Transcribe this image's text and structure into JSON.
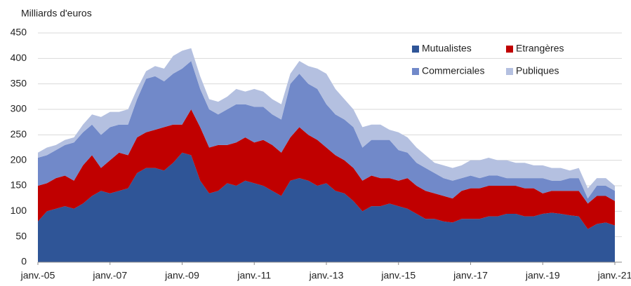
{
  "chart_data": {
    "type": "stacked-area",
    "y_label": "Milliards d'euros",
    "categories": [
      "janv.-05",
      null,
      null,
      null,
      null,
      null,
      null,
      null,
      "janv.-07",
      null,
      null,
      null,
      null,
      null,
      null,
      null,
      "janv.-09",
      null,
      null,
      null,
      null,
      null,
      null,
      null,
      "janv.-11",
      null,
      null,
      null,
      null,
      null,
      null,
      null,
      "janv.-13",
      null,
      null,
      null,
      null,
      null,
      null,
      null,
      "janv.-15",
      null,
      null,
      null,
      null,
      null,
      null,
      null,
      "janv.-17",
      null,
      null,
      null,
      null,
      null,
      null,
      null,
      "janv.-19",
      null,
      null,
      null,
      null,
      null,
      null,
      null,
      "janv.-21"
    ],
    "series": [
      {
        "name": "Mutualistes",
        "color": "#2f5597",
        "values": [
          80,
          100,
          105,
          110,
          105,
          115,
          130,
          140,
          135,
          140,
          145,
          175,
          185,
          185,
          180,
          195,
          215,
          210,
          160,
          135,
          140,
          155,
          150,
          160,
          155,
          150,
          140,
          130,
          160,
          165,
          160,
          150,
          155,
          140,
          135,
          120,
          100,
          110,
          110,
          115,
          110,
          105,
          95,
          85,
          85,
          80,
          78,
          85,
          85,
          85,
          90,
          90,
          95,
          95,
          90,
          90,
          95,
          97,
          95,
          92,
          90,
          65,
          75,
          78,
          72
        ]
      },
      {
        "name": "Etrangères",
        "color": "#c00000",
        "values": [
          70,
          55,
          60,
          60,
          55,
          75,
          80,
          45,
          65,
          75,
          65,
          70,
          70,
          75,
          85,
          75,
          55,
          90,
          105,
          90,
          90,
          75,
          85,
          85,
          80,
          90,
          90,
          85,
          85,
          100,
          90,
          90,
          70,
          70,
          65,
          65,
          60,
          60,
          55,
          50,
          50,
          60,
          55,
          55,
          50,
          50,
          47,
          55,
          60,
          60,
          60,
          60,
          55,
          55,
          55,
          55,
          40,
          43,
          45,
          48,
          50,
          50,
          55,
          52,
          48
        ]
      },
      {
        "name": "Commerciales",
        "color": "#7189c9",
        "values": [
          55,
          55,
          55,
          60,
          75,
          65,
          60,
          65,
          65,
          55,
          60,
          75,
          105,
          105,
          90,
          100,
          110,
          95,
          75,
          75,
          60,
          70,
          75,
          65,
          70,
          65,
          60,
          65,
          105,
          105,
          100,
          100,
          85,
          80,
          80,
          80,
          65,
          70,
          75,
          75,
          60,
          50,
          45,
          45,
          40,
          35,
          35,
          25,
          25,
          20,
          20,
          20,
          15,
          15,
          20,
          20,
          30,
          20,
          20,
          25,
          25,
          10,
          20,
          20,
          20
        ]
      },
      {
        "name": "Publiques",
        "color": "#b4c0e0",
        "values": [
          10,
          15,
          10,
          10,
          10,
          15,
          20,
          35,
          30,
          25,
          30,
          20,
          15,
          20,
          25,
          35,
          35,
          25,
          25,
          20,
          25,
          25,
          30,
          25,
          35,
          30,
          30,
          30,
          20,
          25,
          35,
          40,
          60,
          50,
          40,
          35,
          40,
          30,
          30,
          20,
          35,
          30,
          30,
          25,
          20,
          25,
          25,
          25,
          30,
          35,
          35,
          30,
          35,
          30,
          30,
          25,
          25,
          25,
          25,
          15,
          20,
          20,
          15,
          15,
          10
        ]
      }
    ],
    "ylim": [
      0,
      450
    ],
    "yticks": [
      0,
      50,
      100,
      150,
      200,
      250,
      300,
      350,
      400,
      450
    ],
    "grid": true
  }
}
